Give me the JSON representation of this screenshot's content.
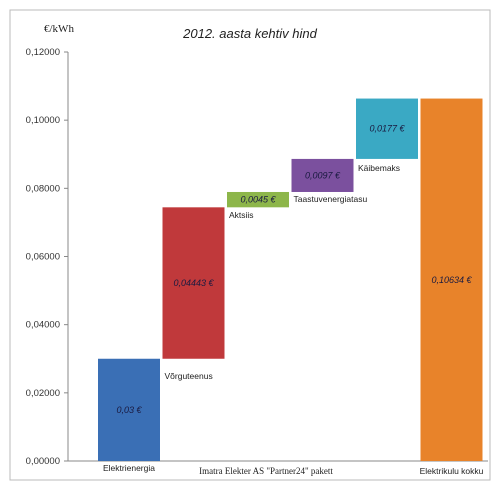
{
  "chart_data": {
    "type": "waterfall",
    "title": "2012. aasta kehtiv hind",
    "ylabel": "€/kWh",
    "ylim": [
      0,
      0.12
    ],
    "yticks": [
      "0,00000",
      "0,02000",
      "0,04000",
      "0,06000",
      "0,08000",
      "0,10000",
      "0,12000"
    ],
    "bars": [
      {
        "category": "Elektrienergia",
        "start": 0,
        "end": 0.03,
        "value_label": "0,03 €",
        "color": "#3a6fb5"
      },
      {
        "category": "Võrguteenus",
        "start": 0.03,
        "end": 0.07443,
        "value_label": "0,04443 €",
        "color": "#c0393b"
      },
      {
        "category": "Aktsiis",
        "start": 0.07443,
        "end": 0.07893,
        "value_label": "0,0045 €",
        "color": "#8db64a"
      },
      {
        "category": "Taastuvenergiatasu",
        "start": 0.07893,
        "end": 0.08863,
        "value_label": "0,0097 €",
        "color": "#7b509e"
      },
      {
        "category": "Käibemaks",
        "start": 0.08863,
        "end": 0.10634,
        "value_label": "0,0177 €",
        "color": "#3aa9c4"
      },
      {
        "category": "Elektrikulu kokku",
        "start": 0,
        "end": 0.10634,
        "value_label": "0,10634 €",
        "color": "#e8832a"
      }
    ],
    "extra_label": "Imatra Elekter AS \"Partner24\" pakett",
    "grid": false,
    "legend": "none"
  }
}
